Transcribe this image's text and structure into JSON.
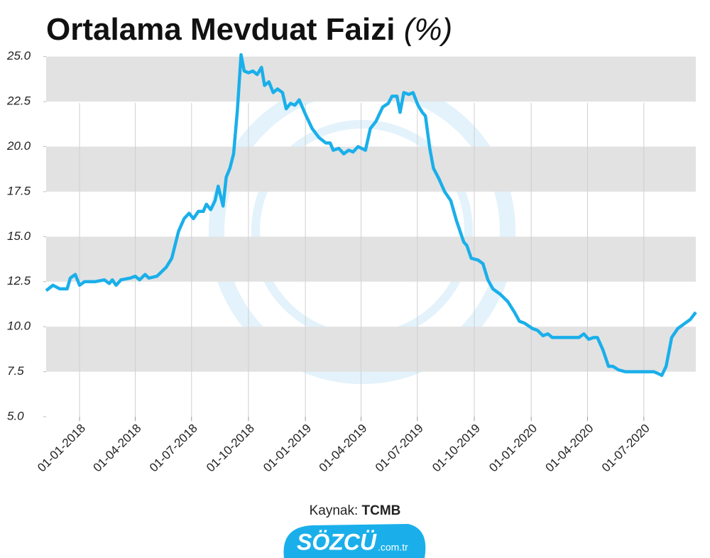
{
  "chart_data": {
    "type": "line",
    "title": "Ortalama Mevduat Faizi",
    "title_unit": "(%)",
    "source_label": "Kaynak:",
    "source": "TCMB",
    "logo": {
      "name": "SÖZCÜ",
      "suffix": ".com.tr"
    },
    "x": [
      "08-11-2017",
      "19-11-2017",
      "30-11-2017",
      "12-12-2017",
      "17-12-2017",
      "25-12-2017",
      "01-01-2018",
      "09-01-2018",
      "26-01-2018",
      "10-02-2018",
      "18-02-2018",
      "23-02-2018",
      "01-03-2018",
      "09-03-2018",
      "24-03-2018",
      "01-04-2018",
      "08-04-2018",
      "17-04-2018",
      "23-04-2018",
      "06-05-2018",
      "21-05-2018",
      "30-05-2018",
      "10-06-2018",
      "19-06-2018",
      "27-06-2018",
      "04-07-2018",
      "12-07-2018",
      "20-07-2018",
      "25-07-2018",
      "01-08-2018",
      "08-08-2018",
      "13-08-2018",
      "21-08-2018",
      "26-08-2018",
      "01-09-2018",
      "07-09-2018",
      "13-09-2018",
      "19-09-2018",
      "24-09-2018",
      "01-10-2018",
      "08-10-2018",
      "15-10-2018",
      "22-10-2018",
      "27-10-2018",
      "03-11-2018",
      "10-11-2018",
      "17-11-2018",
      "25-11-2018",
      "01-12-2018",
      "08-12-2018",
      "15-12-2018",
      "22-12-2018",
      "01-01-2019",
      "12-01-2019",
      "23-01-2019",
      "03-02-2019",
      "10-02-2019",
      "15-02-2019",
      "24-02-2019",
      "04-03-2019",
      "12-03-2019",
      "19-03-2019",
      "27-03-2019",
      "08-04-2019",
      "16-04-2019",
      "25-04-2019",
      "06-05-2019",
      "15-05-2019",
      "21-05-2019",
      "29-05-2019",
      "03-06-2019",
      "09-06-2019",
      "17-06-2019",
      "24-06-2019",
      "02-07-2019",
      "09-07-2019",
      "14-07-2019",
      "21-07-2019",
      "27-07-2019",
      "05-08-2019",
      "14-08-2019",
      "24-08-2019",
      "02-09-2019",
      "14-09-2019",
      "19-09-2019",
      "26-09-2019",
      "07-10-2019",
      "15-10-2019",
      "23-10-2019",
      "31-10-2019",
      "12-11-2019",
      "24-11-2019",
      "05-12-2019",
      "13-12-2019",
      "21-12-2019",
      "03-01-2020",
      "11-01-2020",
      "20-01-2020",
      "28-01-2020",
      "04-02-2020",
      "13-02-2020",
      "21-02-2020",
      "01-03-2020",
      "10-03-2020",
      "18-03-2020",
      "26-03-2020",
      "03-04-2020",
      "11-04-2020",
      "17-04-2020",
      "26-04-2020",
      "05-05-2020",
      "12-05-2020",
      "21-05-2020",
      "01-06-2020",
      "18-06-2020",
      "01-07-2020",
      "17-07-2020",
      "24-07-2020",
      "30-07-2020",
      "06-08-2020",
      "15-08-2020",
      "25-08-2020",
      "06-09-2020",
      "14-09-2020",
      "23-09-2020"
    ],
    "series": [
      {
        "color": "#1aafea",
        "values": [
          12.0,
          12.3,
          12.1,
          12.1,
          12.7,
          12.9,
          12.3,
          12.5,
          12.5,
          12.6,
          12.4,
          12.6,
          12.3,
          12.6,
          12.7,
          12.8,
          12.6,
          12.9,
          12.7,
          12.8,
          13.3,
          13.8,
          15.3,
          16.0,
          16.3,
          16.0,
          16.4,
          16.4,
          16.8,
          16.5,
          17.0,
          17.8,
          16.7,
          18.3,
          18.8,
          19.6,
          22.0,
          25.1,
          24.2,
          24.1,
          24.2,
          24.0,
          24.4,
          23.4,
          23.6,
          23.0,
          23.2,
          23.0,
          22.1,
          22.4,
          22.3,
          22.6,
          21.8,
          21.0,
          20.5,
          20.2,
          20.2,
          19.8,
          19.9,
          19.6,
          19.8,
          19.7,
          20.0,
          19.8,
          21.0,
          21.4,
          22.2,
          22.4,
          22.8,
          22.8,
          21.9,
          23.0,
          22.9,
          23.0,
          22.3,
          21.9,
          21.7,
          19.9,
          18.8,
          18.2,
          17.5,
          17.0,
          15.9,
          14.7,
          14.5,
          13.8,
          13.7,
          13.5,
          12.6,
          12.1,
          11.8,
          11.4,
          10.8,
          10.3,
          10.2,
          9.9,
          9.8,
          9.5,
          9.6,
          9.4,
          9.4,
          9.4,
          9.4,
          9.4,
          9.4,
          9.6,
          9.3,
          9.4,
          9.4,
          8.7,
          7.8,
          7.8,
          7.6,
          7.5,
          7.5,
          7.5,
          7.5,
          7.4,
          7.3,
          7.8,
          9.4,
          9.9,
          10.2,
          10.4,
          10.8
        ]
      }
    ],
    "xlim": [
      "08-11-2017",
      "23-09-2020"
    ],
    "xticks": [
      "01-01-2018",
      "01-04-2018",
      "01-07-2018",
      "01-10-2018",
      "01-01-2019",
      "01-04-2019",
      "01-07-2019",
      "01-10-2019",
      "01-01-2020",
      "01-04-2020",
      "01-07-2020"
    ],
    "ylim": [
      5,
      25.5
    ],
    "yticks": [
      {
        "value": 5,
        "label": "5.0"
      },
      {
        "value": 7.5,
        "label": "7.5"
      },
      {
        "value": 10,
        "label": "10.0"
      },
      {
        "value": 12.5,
        "label": "12.5"
      },
      {
        "value": 15,
        "label": "15.0"
      },
      {
        "value": 17.5,
        "label": "17.5"
      },
      {
        "value": 20,
        "label": "20.0"
      },
      {
        "value": 22.5,
        "label": "22.5"
      },
      {
        "value": 25,
        "label": "25.0"
      }
    ],
    "grid": true,
    "bands": true
  }
}
